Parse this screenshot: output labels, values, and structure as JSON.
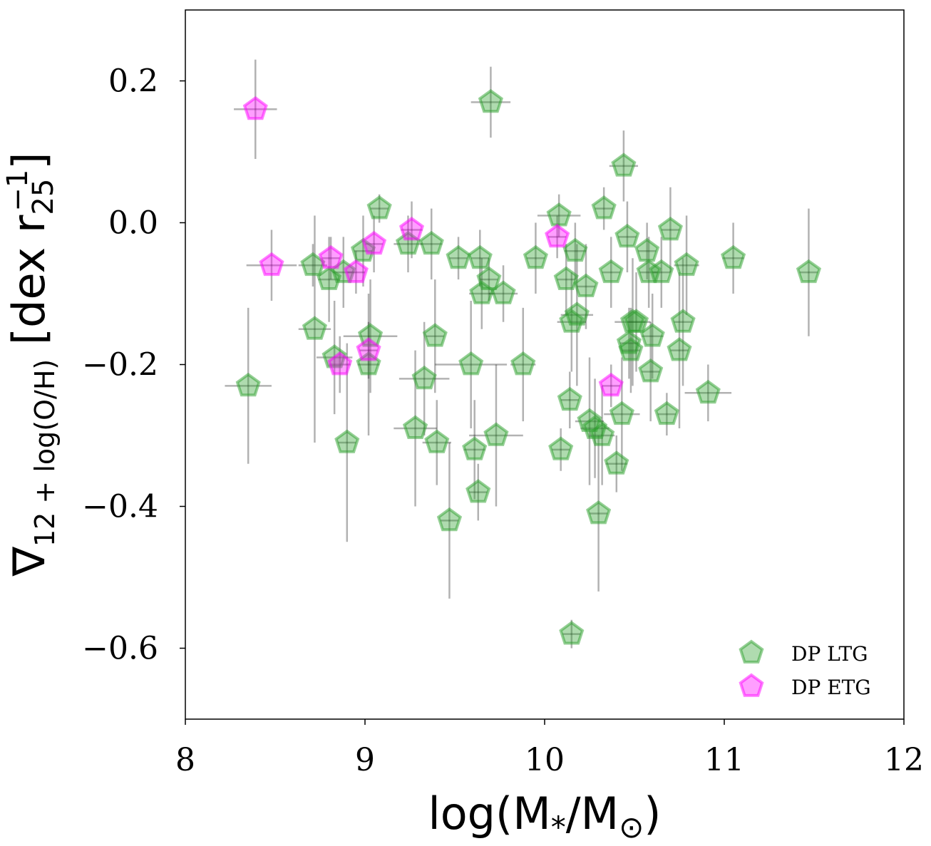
{
  "chart_data": {
    "type": "scatter",
    "title": "",
    "xlabel": "log(M*/M⊙)",
    "ylabel": "∇12+log(O/H) [dex r25^-1]",
    "xlabel_parts": {
      "base": "log(M",
      "sub1": "*",
      "mid": "/M",
      "sub2": "⊙",
      "end": ")"
    },
    "ylabel_parts": {
      "nabla": "∇",
      "sub": "12 + log(O/H)",
      "main": " [dex r",
      "sub2": "25",
      "sup": "−1",
      "end": "]"
    },
    "xlim": [
      8,
      12
    ],
    "ylim": [
      -0.7,
      0.3
    ],
    "xticks": [
      8,
      9,
      10,
      11,
      12
    ],
    "xtick_labels": [
      "8",
      "9",
      "10",
      "11",
      "12"
    ],
    "yticks": [
      0.2,
      0.0,
      -0.2,
      -0.4,
      -0.6
    ],
    "ytick_labels": [
      "0.2",
      "0.0",
      "−0.2",
      "−0.4",
      "−0.6"
    ],
    "legend_position": "lower-right",
    "series": [
      {
        "name": "DP LTG",
        "color": "#2ca02c",
        "marker": "pentagon",
        "points": [
          [
            8.35,
            -0.23,
            0.13,
            0.11
          ],
          [
            8.71,
            -0.06,
            0.08,
            0.03
          ],
          [
            8.72,
            -0.15,
            0.09,
            0.16
          ],
          [
            8.8,
            -0.08,
            0.06,
            0.06
          ],
          [
            8.83,
            -0.19,
            0.1,
            0.08
          ],
          [
            8.9,
            -0.31,
            0.05,
            0.14
          ],
          [
            8.88,
            -0.07,
            0.06,
            0.05
          ],
          [
            8.99,
            -0.04,
            0.05,
            0.05
          ],
          [
            9.02,
            -0.2,
            0.06,
            0.1
          ],
          [
            9.03,
            -0.16,
            0.15,
            0.08
          ],
          [
            9.08,
            0.02,
            0.05,
            0.02
          ],
          [
            9.24,
            -0.03,
            0.08,
            0.04
          ],
          [
            9.28,
            -0.29,
            0.12,
            0.11
          ],
          [
            9.33,
            -0.22,
            0.14,
            0.08
          ],
          [
            9.37,
            -0.03,
            0.06,
            0.05
          ],
          [
            9.39,
            -0.16,
            0.05,
            0.08
          ],
          [
            9.4,
            -0.31,
            0.08,
            0.06
          ],
          [
            9.47,
            -0.42,
            0.05,
            0.11
          ],
          [
            9.52,
            -0.05,
            0.05,
            0.03
          ],
          [
            9.59,
            -0.2,
            0.2,
            0.09
          ],
          [
            9.61,
            -0.32,
            0.06,
            0.07
          ],
          [
            9.63,
            -0.38,
            0.05,
            0.04
          ],
          [
            9.64,
            -0.05,
            0.05,
            0.04
          ],
          [
            9.65,
            -0.1,
            0.07,
            0.05
          ],
          [
            9.69,
            -0.08,
            0.05,
            0.03
          ],
          [
            9.7,
            0.17,
            0.11,
            0.05
          ],
          [
            9.73,
            -0.3,
            0.15,
            0.1
          ],
          [
            9.77,
            -0.1,
            0.08,
            0.04
          ],
          [
            9.88,
            -0.2,
            0.07,
            0.08
          ],
          [
            9.95,
            -0.05,
            0.05,
            0.05
          ],
          [
            10.08,
            0.01,
            0.12,
            0.03
          ],
          [
            10.09,
            -0.32,
            0.05,
            0.03
          ],
          [
            10.12,
            -0.08,
            0.05,
            0.05
          ],
          [
            10.14,
            -0.25,
            0.05,
            0.04
          ],
          [
            10.15,
            -0.58,
            0.05,
            0.02
          ],
          [
            10.15,
            -0.14,
            0.08,
            0.07
          ],
          [
            10.17,
            -0.04,
            0.06,
            0.04
          ],
          [
            10.18,
            -0.13,
            0.09,
            0.1
          ],
          [
            10.23,
            -0.09,
            0.05,
            0.06
          ],
          [
            10.25,
            -0.28,
            0.08,
            0.09
          ],
          [
            10.28,
            -0.29,
            0.08,
            0.07
          ],
          [
            10.3,
            -0.41,
            0.05,
            0.11
          ],
          [
            10.32,
            -0.3,
            0.07,
            0.07
          ],
          [
            10.33,
            0.02,
            0.05,
            0.03
          ],
          [
            10.37,
            -0.07,
            0.05,
            0.05
          ],
          [
            10.4,
            -0.34,
            0.06,
            0.04
          ],
          [
            10.43,
            -0.27,
            0.1,
            0.08
          ],
          [
            10.44,
            0.08,
            0.08,
            0.05
          ],
          [
            10.46,
            -0.02,
            0.05,
            0.05
          ],
          [
            10.48,
            -0.18,
            0.05,
            0.06
          ],
          [
            10.47,
            -0.17,
            0.05,
            0.05
          ],
          [
            10.49,
            -0.14,
            0.1,
            0.09
          ],
          [
            10.51,
            -0.14,
            0.05,
            0.07
          ],
          [
            10.57,
            -0.04,
            0.05,
            0.04
          ],
          [
            10.58,
            -0.07,
            0.05,
            0.05
          ],
          [
            10.59,
            -0.21,
            0.05,
            0.07
          ],
          [
            10.6,
            -0.16,
            0.06,
            0.06
          ],
          [
            10.65,
            -0.07,
            0.05,
            0.05
          ],
          [
            10.68,
            -0.27,
            0.05,
            0.03
          ],
          [
            10.7,
            -0.01,
            0.05,
            0.06
          ],
          [
            10.75,
            -0.18,
            0.05,
            0.11
          ],
          [
            10.77,
            -0.14,
            0.05,
            0.09
          ],
          [
            10.79,
            -0.06,
            0.07,
            0.07
          ],
          [
            10.91,
            -0.24,
            0.13,
            0.04
          ],
          [
            11.05,
            -0.05,
            0.06,
            0.05
          ],
          [
            11.47,
            -0.07,
            0.05,
            0.09
          ]
        ]
      },
      {
        "name": "DP ETG",
        "color": "#ff00ff",
        "marker": "pentagon",
        "points": [
          [
            8.39,
            0.16,
            0.12,
            0.07
          ],
          [
            8.48,
            -0.06,
            0.14,
            0.05
          ],
          [
            8.81,
            -0.05,
            0.05,
            0.03
          ],
          [
            8.86,
            -0.2,
            0.06,
            0.04
          ],
          [
            8.95,
            -0.07,
            0.05,
            0.03
          ],
          [
            9.02,
            -0.18,
            0.05,
            0.04
          ],
          [
            9.05,
            -0.03,
            0.05,
            0.04
          ],
          [
            9.26,
            -0.01,
            0.06,
            0.04
          ],
          [
            10.07,
            -0.02,
            0.05,
            0.03
          ],
          [
            10.37,
            -0.23,
            0.05,
            0.03
          ]
        ]
      }
    ]
  }
}
